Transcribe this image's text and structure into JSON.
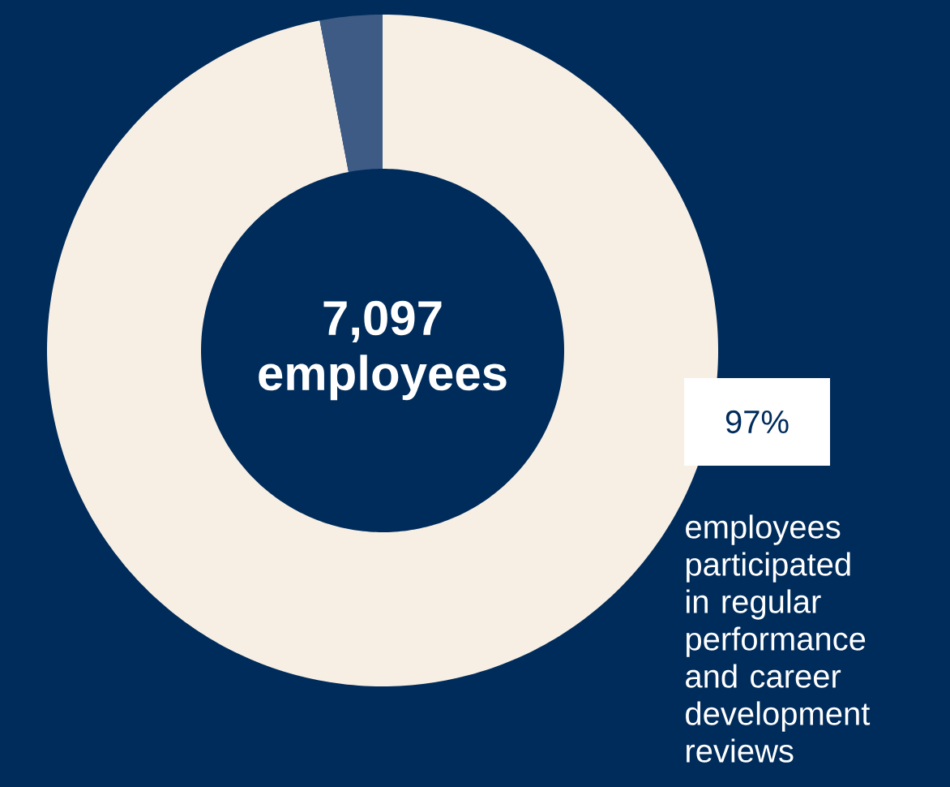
{
  "chart_data": {
    "type": "donut",
    "title": "7,097 employees",
    "categories": [
      null,
      null
    ],
    "values": [
      97,
      3
    ],
    "colors": [
      "#f7efe4",
      "#3d5b84"
    ],
    "value_labels": [
      "97%",
      null
    ],
    "annotations": [
      "employees participated in regular performance and career development reviews"
    ]
  }
}
